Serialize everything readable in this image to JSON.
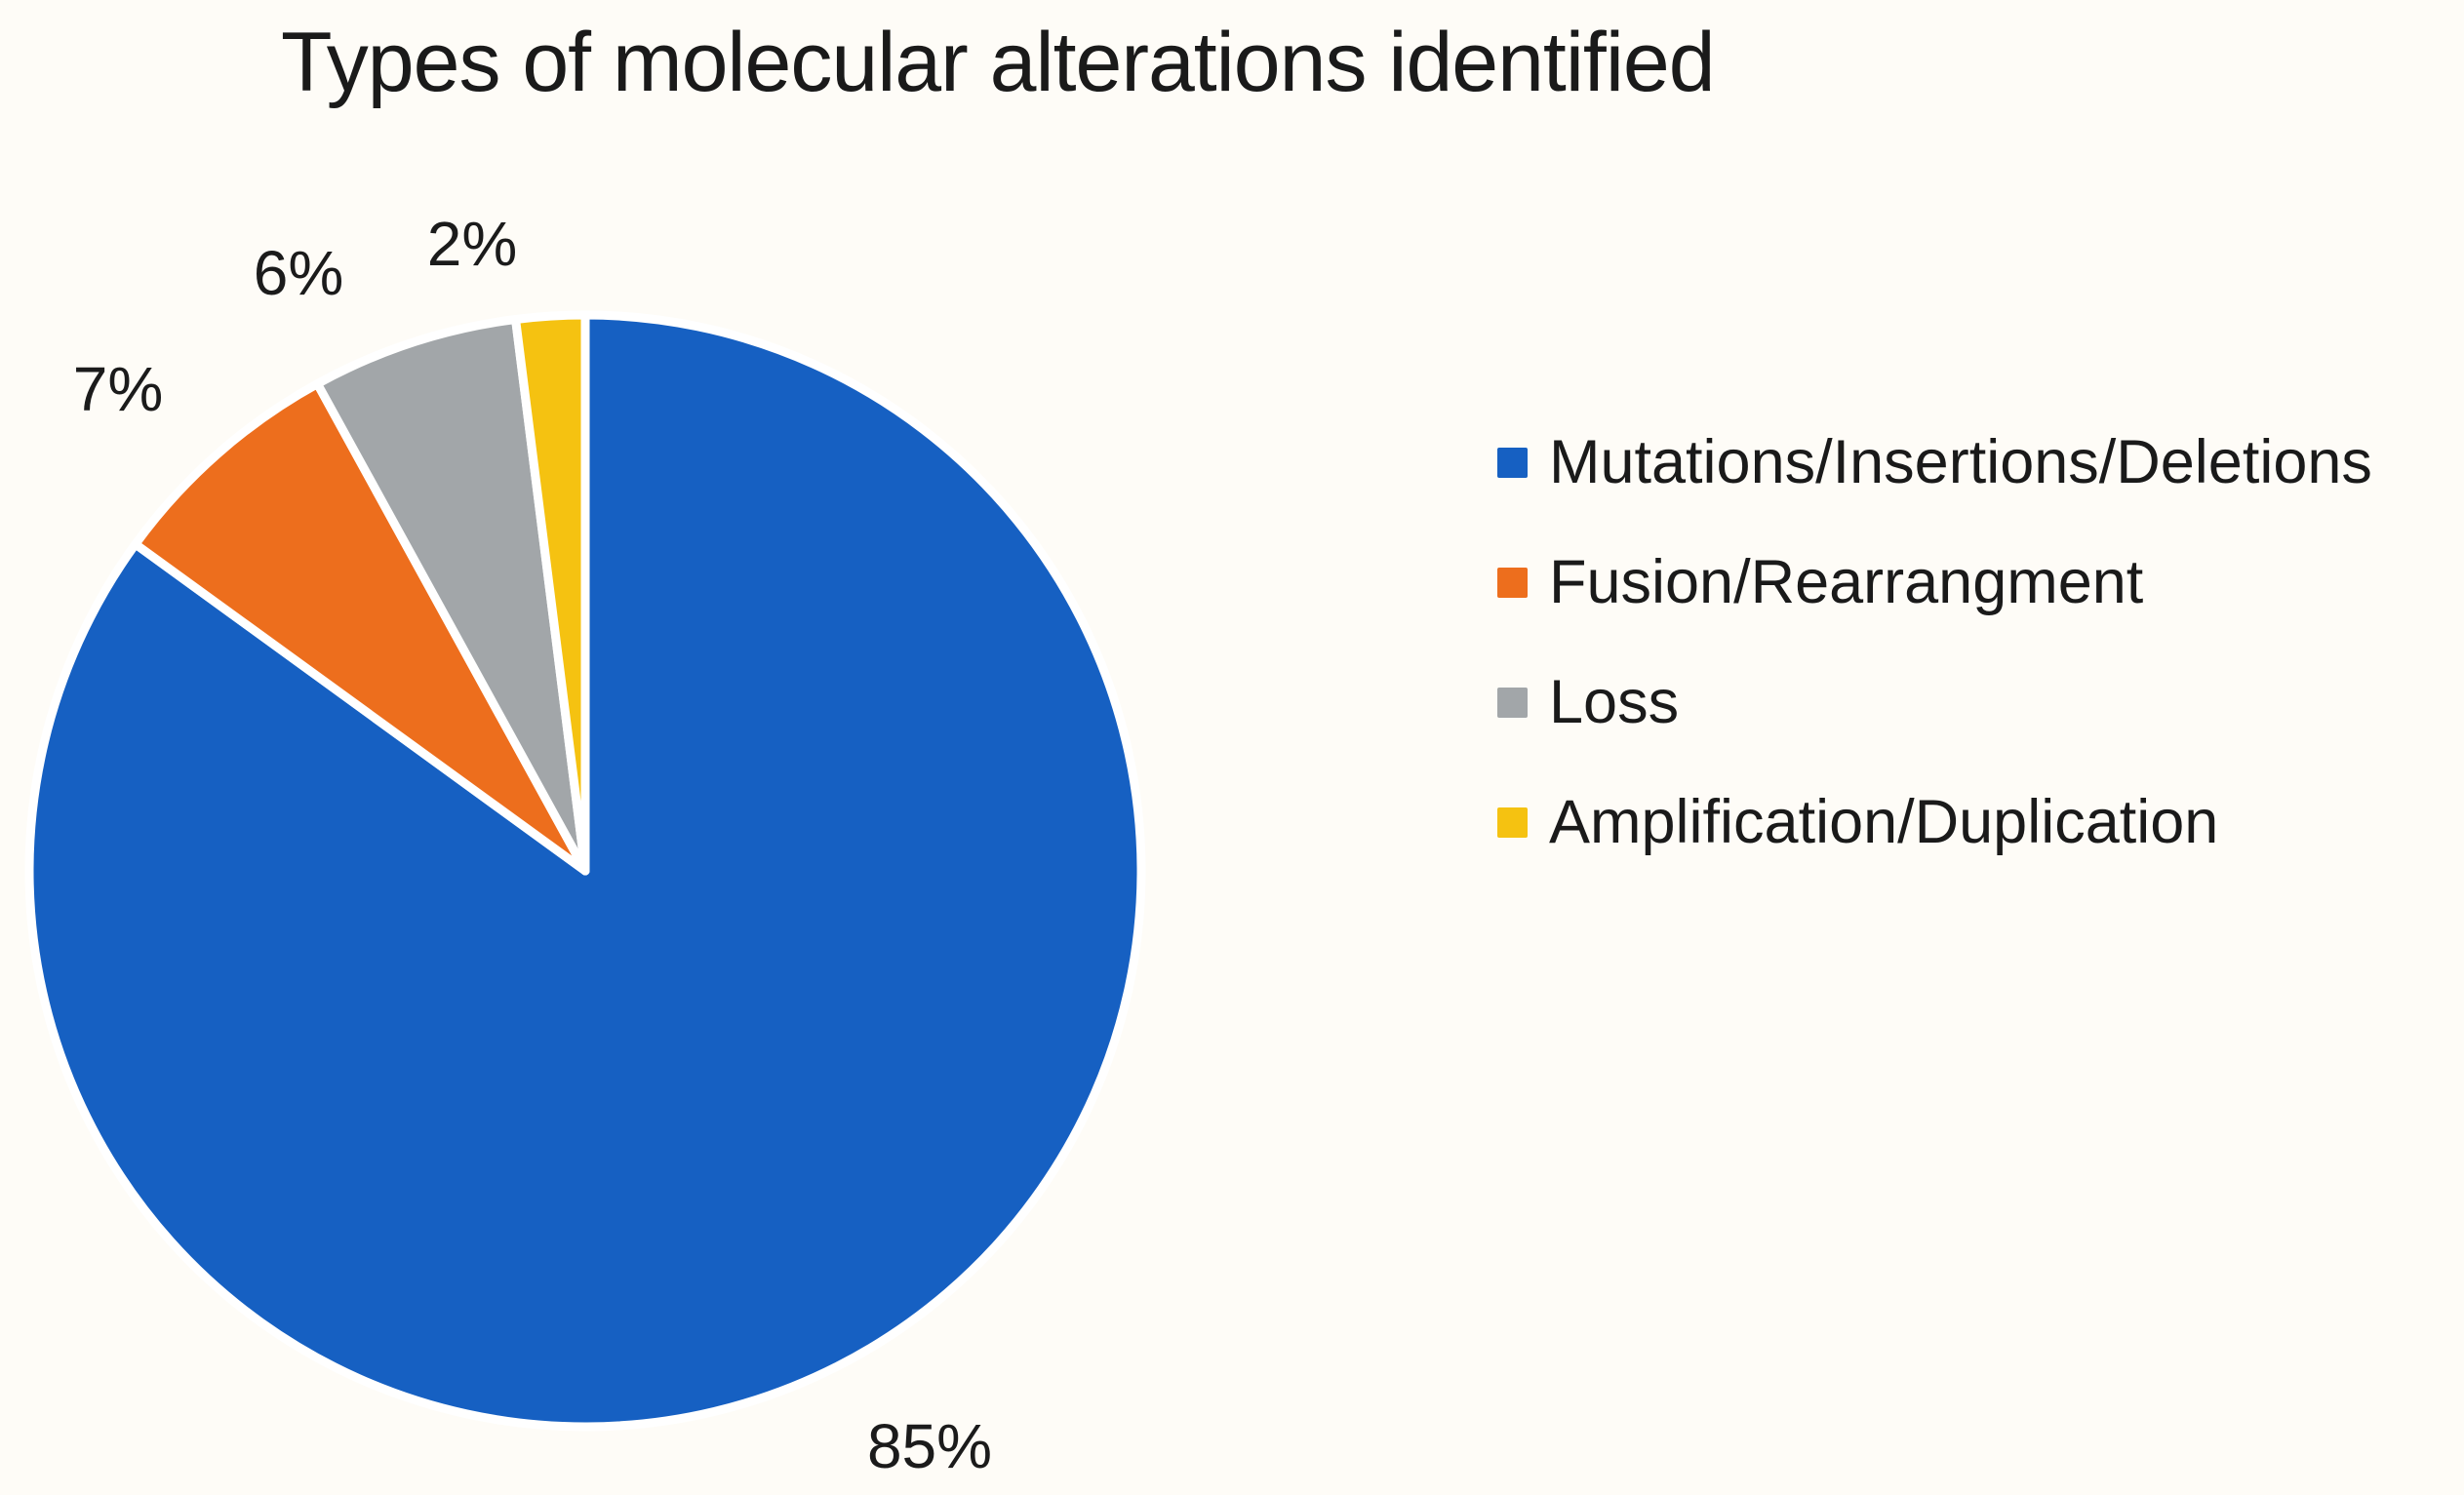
{
  "figure": {
    "background_color": "#FEFCF7",
    "separator_color": "#FFFFFF"
  },
  "chart_data": {
    "type": "pie",
    "title": "Types of molecular alterations identified",
    "legend_position": "right",
    "start_angle_deg": 0,
    "direction": "clockwise",
    "slices": [
      {
        "label": "Mutations/Insertions/Deletions",
        "value": 85,
        "pct_label": "85%",
        "color": "#1660C2"
      },
      {
        "label": "Fusion/Rearrangment",
        "value": 7,
        "pct_label": "7%",
        "color": "#ED6E1D"
      },
      {
        "label": "Loss",
        "value": 6,
        "pct_label": "6%",
        "color": "#A2A6A9"
      },
      {
        "label": "Amplification/Duplication",
        "value": 2,
        "pct_label": "2%",
        "color": "#F5C211"
      }
    ]
  }
}
